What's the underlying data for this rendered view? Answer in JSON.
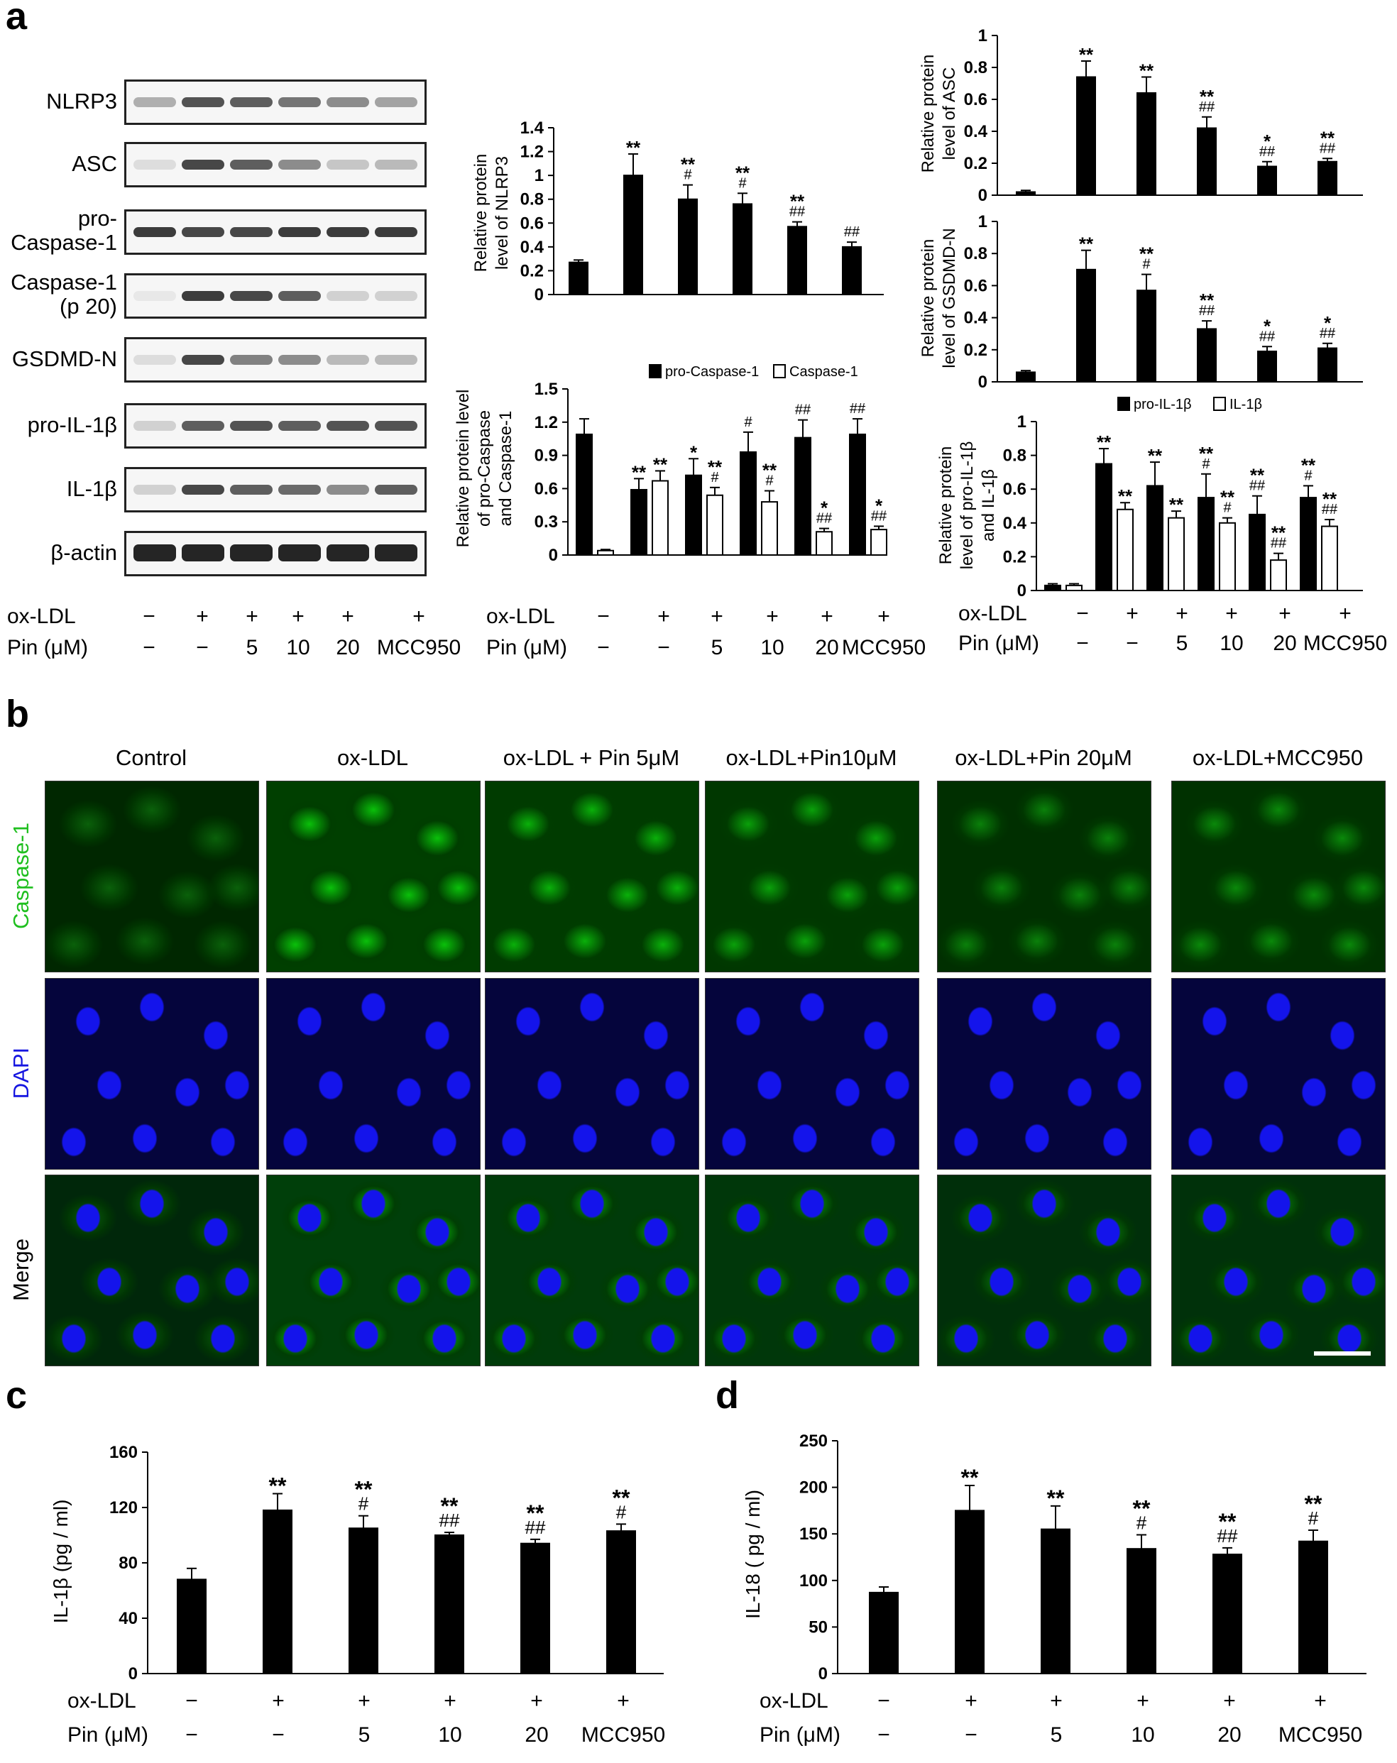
{
  "panels": {
    "a": "a",
    "b": "b",
    "c": "c",
    "d": "d"
  },
  "blot_labels": [
    "NLRP3",
    "ASC",
    "pro-\nCaspase-1",
    "Caspase-1\n(p 20)",
    "GSDMD-N",
    "pro-IL-1β",
    "IL-1β",
    "β-actin"
  ],
  "treatment": {
    "oxldl_label": "ox-LDL",
    "pin_label": "Pin (μM)",
    "oxldl_marks": [
      "−",
      "+",
      "+",
      "+",
      "+",
      "+"
    ],
    "pin_marks": [
      "−",
      "−",
      "5",
      "10",
      "20",
      "MCC950"
    ]
  },
  "micrograph": {
    "columns": [
      "Control",
      "ox-LDL",
      "ox-LDL + Pin 5μM",
      "ox-LDL+Pin10μM",
      "ox-LDL+Pin 20μM",
      "ox-LDL+MCC950"
    ],
    "rows": [
      {
        "label": "Caspase-1",
        "color": "#1fbf1f"
      },
      {
        "label": "DAPI",
        "color": "#1515e0"
      },
      {
        "label": "Merge",
        "color": "#000000"
      }
    ]
  },
  "chart_data": [
    {
      "id": "nlrp3",
      "type": "bar",
      "categories": [
        "1",
        "2",
        "3",
        "4",
        "5",
        "6"
      ],
      "values": [
        0.27,
        1.0,
        0.8,
        0.76,
        0.57,
        0.4
      ],
      "errors": [
        0.02,
        0.18,
        0.12,
        0.09,
        0.04,
        0.04
      ],
      "stars": [
        "",
        "**",
        "**",
        "**",
        "**",
        ""
      ],
      "hashes": [
        "",
        "",
        "#",
        "#",
        "##",
        "##"
      ],
      "ylabel": "Relative protein\nlevel of  NLRP3",
      "ylim": [
        0,
        1.4
      ],
      "yticks": [
        "0",
        "0.2",
        "0.4",
        "0.6",
        "0.8",
        "1",
        "1.2",
        "1.4"
      ]
    },
    {
      "id": "asc",
      "type": "bar",
      "categories": [
        "1",
        "2",
        "3",
        "4",
        "5",
        "6"
      ],
      "values": [
        0.02,
        0.74,
        0.64,
        0.42,
        0.18,
        0.21
      ],
      "errors": [
        0.01,
        0.1,
        0.1,
        0.07,
        0.03,
        0.02
      ],
      "stars": [
        "",
        "**",
        "**",
        "**",
        "*",
        "**"
      ],
      "hashes": [
        "",
        "",
        "",
        "##",
        "##",
        "##"
      ],
      "ylabel": "Relative protein\nlevel of ASC",
      "ylim": [
        0,
        1
      ],
      "yticks": [
        "0",
        "0.2",
        "0.4",
        "0.6",
        "0.8",
        "1"
      ]
    },
    {
      "id": "gsdmd",
      "type": "bar",
      "categories": [
        "1",
        "2",
        "3",
        "4",
        "5",
        "6"
      ],
      "values": [
        0.06,
        0.7,
        0.57,
        0.33,
        0.19,
        0.21
      ],
      "errors": [
        0.01,
        0.12,
        0.1,
        0.05,
        0.03,
        0.03
      ],
      "stars": [
        "",
        "**",
        "**",
        "**",
        "*",
        "*"
      ],
      "hashes": [
        "",
        "",
        "#",
        "##",
        "##",
        "##"
      ],
      "ylabel": "Relative protein\nlevel of GSDMD-N",
      "ylim": [
        0,
        1
      ],
      "yticks": [
        "0",
        "0.2",
        "0.4",
        "0.6",
        "0.8",
        "1"
      ]
    },
    {
      "id": "casp",
      "type": "bar",
      "categories": [
        "1",
        "2",
        "3",
        "4",
        "5",
        "6"
      ],
      "series": [
        {
          "name": "pro-Caspase-1",
          "values": [
            1.09,
            0.59,
            0.72,
            0.93,
            1.06,
            1.09
          ],
          "errors": [
            0.14,
            0.1,
            0.15,
            0.18,
            0.16,
            0.14
          ],
          "stars": [
            "",
            "**",
            "*",
            "",
            "",
            ""
          ],
          "hashes": [
            "",
            "",
            "",
            "#",
            "##",
            "##"
          ]
        },
        {
          "name": "Caspase-1",
          "values": [
            0.04,
            0.67,
            0.54,
            0.48,
            0.21,
            0.23
          ],
          "errors": [
            0.01,
            0.09,
            0.07,
            0.1,
            0.03,
            0.03
          ],
          "stars": [
            "",
            "**",
            "**",
            "**",
            "*",
            "*"
          ],
          "hashes": [
            "",
            "",
            "#",
            "#",
            "##",
            "##"
          ]
        }
      ],
      "ylabel": "Relative protein level\nof pro-Caspase\nand Caspase-1",
      "ylim": [
        0,
        1.5
      ],
      "yticks": [
        "0",
        "0.3",
        "0.6",
        "0.9",
        "1.2",
        "1.5"
      ]
    },
    {
      "id": "il1b",
      "type": "bar",
      "categories": [
        "1",
        "2",
        "3",
        "4",
        "5",
        "6"
      ],
      "series": [
        {
          "name": "pro-IL-1β",
          "values": [
            0.03,
            0.75,
            0.62,
            0.55,
            0.45,
            0.55
          ],
          "errors": [
            0.01,
            0.09,
            0.14,
            0.14,
            0.11,
            0.07
          ],
          "stars": [
            "",
            "**",
            "**",
            "**",
            "**",
            "**"
          ],
          "hashes": [
            "",
            "",
            "",
            "#",
            "##",
            "#"
          ]
        },
        {
          "name": "IL-1β",
          "values": [
            0.03,
            0.48,
            0.43,
            0.4,
            0.18,
            0.38
          ],
          "errors": [
            0.01,
            0.04,
            0.04,
            0.03,
            0.04,
            0.04
          ],
          "stars": [
            "",
            "**",
            "**",
            "**",
            "**",
            "**"
          ],
          "hashes": [
            "",
            "",
            "",
            "#",
            "##",
            "##"
          ]
        }
      ],
      "ylabel": "Relative protein\nlevel of pro-IL-1β\nand IL-1β",
      "ylim": [
        0,
        1
      ],
      "yticks": [
        "0",
        "0.2",
        "0.4",
        "0.6",
        "0.8",
        "1"
      ]
    },
    {
      "id": "c_il1b",
      "type": "bar",
      "categories": [
        "1",
        "2",
        "3",
        "4",
        "5",
        "6"
      ],
      "values": [
        68,
        118,
        105,
        100,
        94,
        103
      ],
      "errors": [
        8,
        12,
        9,
        2,
        3,
        5
      ],
      "stars": [
        "",
        "**",
        "**",
        "**",
        "**",
        "**"
      ],
      "hashes": [
        "",
        "",
        "#",
        "##",
        "##",
        "#"
      ],
      "ylabel": "IL-1β (pg / ml)",
      "ylim": [
        0,
        160
      ],
      "yticks": [
        "0",
        "40",
        "80",
        "120",
        "160"
      ]
    },
    {
      "id": "d_il18",
      "type": "bar",
      "categories": [
        "1",
        "2",
        "3",
        "4",
        "5",
        "6"
      ],
      "values": [
        87,
        175,
        155,
        134,
        128,
        142
      ],
      "errors": [
        6,
        27,
        25,
        15,
        7,
        12
      ],
      "stars": [
        "",
        "**",
        "**",
        "**",
        "**",
        "**"
      ],
      "hashes": [
        "",
        "",
        "",
        "#",
        "##",
        "#"
      ],
      "ylabel": "IL-18 ( pg / ml)",
      "ylim": [
        0,
        250
      ],
      "yticks": [
        "0",
        "50",
        "100",
        "150",
        "200",
        "250"
      ]
    }
  ],
  "bar_colors": {
    "filled": "#000000",
    "open": "#ffffff"
  }
}
